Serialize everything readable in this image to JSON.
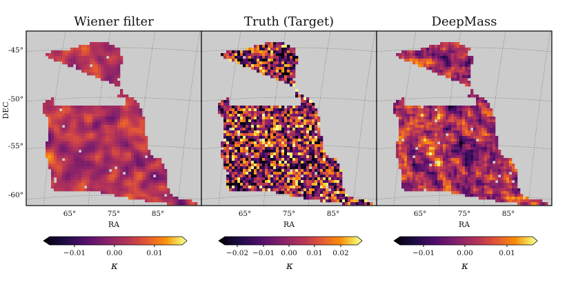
{
  "figure": {
    "panels": [
      {
        "title": "Wiener filter",
        "amplitude": 0.45,
        "seed": 11,
        "smooth": 2
      },
      {
        "title": "Truth (Target)",
        "amplitude": 1.0,
        "seed": 29,
        "smooth": 0
      },
      {
        "title": "DeepMass",
        "amplitude": 0.8,
        "seed": 47,
        "smooth": 1
      }
    ],
    "axes": {
      "ra_ticks": [
        "65°",
        "75°",
        "85°"
      ],
      "dec_ticks": [
        "-45°",
        "-50°",
        "-55°",
        "-60°"
      ],
      "xlabel": "RA",
      "ylabel": "DEC"
    },
    "colorbars": [
      {
        "ticks": [
          "−0.01",
          "0.00",
          "0.01"
        ],
        "label": "κ"
      },
      {
        "ticks": [
          "−0.02",
          "−0.01",
          "0.00",
          "0.01",
          "0.02"
        ],
        "label": "κ"
      },
      {
        "ticks": [
          "−0.01",
          "0.00",
          "0.01"
        ],
        "label": "κ"
      }
    ],
    "colormap": "inferno",
    "colors": {
      "mask_background": "#cccccc",
      "grid": "#777777",
      "frame": "#000000"
    }
  }
}
